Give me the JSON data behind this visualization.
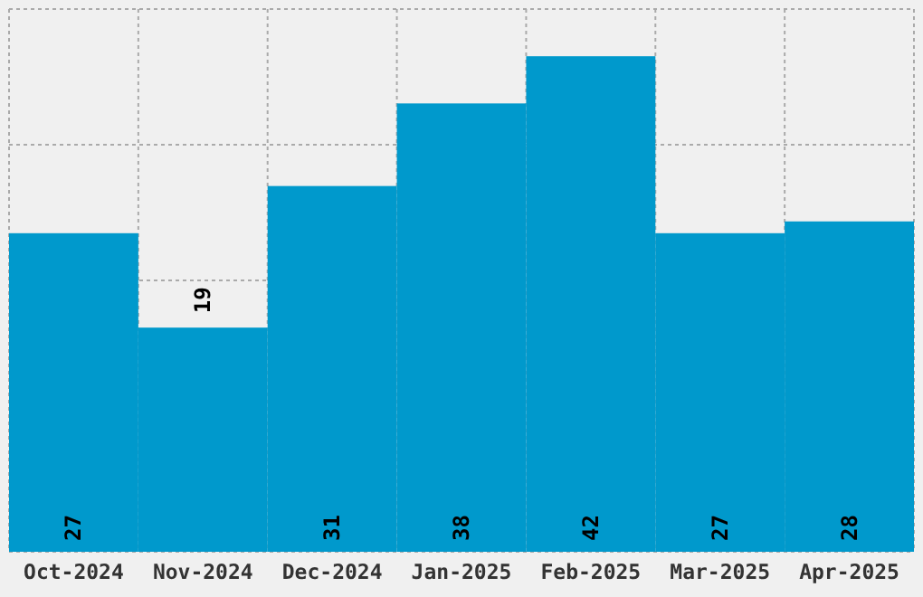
{
  "chart_data": {
    "type": "bar",
    "categories": [
      "Oct-2024",
      "Nov-2024",
      "Dec-2024",
      "Jan-2025",
      "Feb-2025",
      "Mar-2025",
      "Apr-2025"
    ],
    "values": [
      27,
      19,
      31,
      38,
      42,
      27,
      28
    ],
    "color": "#0099cc",
    "ylim": [
      0,
      46
    ],
    "grid": true,
    "data_labels": true,
    "tick_labels": "x"
  }
}
